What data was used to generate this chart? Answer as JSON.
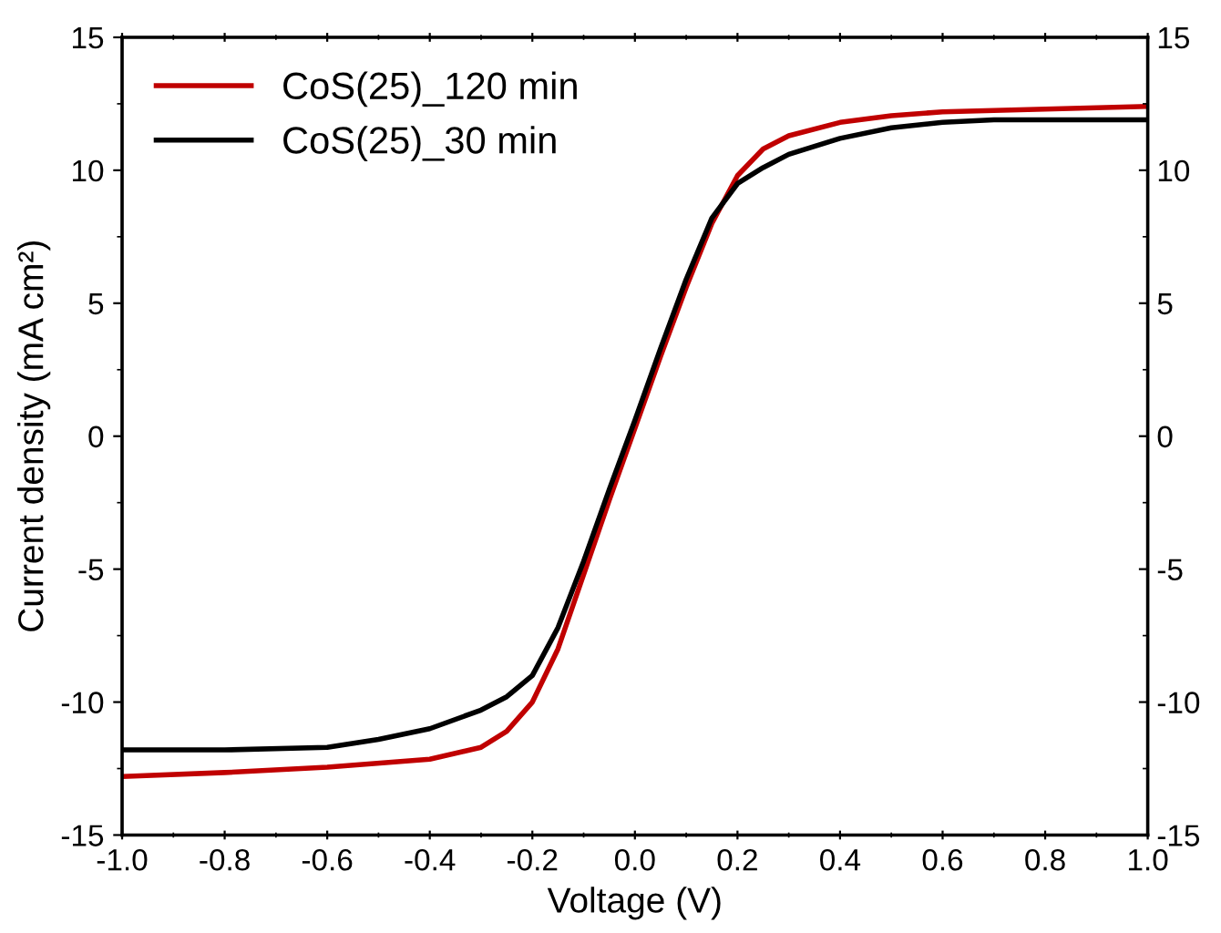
{
  "chart_data": {
    "type": "line",
    "xlabel": "Voltage (V)",
    "ylabel": "Current density (mA cm²)",
    "xlim": [
      -1.0,
      1.0
    ],
    "xticks": [
      {
        "value": -1.0,
        "label": "-1.0"
      },
      {
        "value": -0.8,
        "label": "-0.8"
      },
      {
        "value": -0.6,
        "label": "-0.6"
      },
      {
        "value": -0.4,
        "label": "-0.4"
      },
      {
        "value": -0.2,
        "label": "-0.2"
      },
      {
        "value": 0.0,
        "label": "0.0"
      },
      {
        "value": 0.2,
        "label": "0.2"
      },
      {
        "value": 0.4,
        "label": "0.4"
      },
      {
        "value": 0.6,
        "label": "0.6"
      },
      {
        "value": 0.8,
        "label": "0.8"
      },
      {
        "value": 1.0,
        "label": "1.0"
      }
    ],
    "ylim": [
      -15,
      15
    ],
    "yticks": [
      {
        "value": -15,
        "label": "-15"
      },
      {
        "value": -10,
        "label": "-10"
      },
      {
        "value": -5,
        "label": "-5"
      },
      0,
      5,
      10,
      15
    ],
    "y2lim": [
      -15,
      15
    ],
    "y2ticks": [
      {
        "value": -15,
        "label": "-15"
      },
      {
        "value": -10,
        "label": "-10"
      },
      {
        "value": -5,
        "label": "-5"
      },
      0,
      5,
      10,
      15
    ],
    "legend": "top left",
    "grid": false,
    "line_style": "solid",
    "marker": "none",
    "series": [
      {
        "name": "CoS(25)_120 min",
        "color": "#c00000",
        "x": [
          -1.0,
          -0.8,
          -0.6,
          -0.4,
          -0.3,
          -0.25,
          -0.2,
          -0.15,
          -0.1,
          -0.05,
          0.0,
          0.05,
          0.1,
          0.15,
          0.2,
          0.25,
          0.3,
          0.4,
          0.5,
          0.6,
          0.8,
          1.0
        ],
        "values": [
          -12.8,
          -12.65,
          -12.45,
          -12.15,
          -11.7,
          -11.1,
          -10.0,
          -8.0,
          -5.2,
          -2.4,
          0.3,
          3.0,
          5.6,
          8.0,
          9.8,
          10.8,
          11.3,
          11.8,
          12.05,
          12.2,
          12.3,
          12.4
        ]
      },
      {
        "name": "CoS(25)_30 min",
        "color": "#000000",
        "x": [
          -1.0,
          -0.8,
          -0.6,
          -0.5,
          -0.4,
          -0.3,
          -0.25,
          -0.2,
          -0.15,
          -0.1,
          -0.05,
          0.0,
          0.05,
          0.1,
          0.15,
          0.2,
          0.25,
          0.3,
          0.4,
          0.5,
          0.6,
          0.7,
          1.0
        ],
        "values": [
          -11.8,
          -11.8,
          -11.7,
          -11.4,
          -11.0,
          -10.3,
          -9.8,
          -9.0,
          -7.2,
          -4.7,
          -2.0,
          0.6,
          3.3,
          5.9,
          8.2,
          9.5,
          10.1,
          10.6,
          11.2,
          11.6,
          11.8,
          11.9,
          11.9
        ]
      }
    ]
  }
}
